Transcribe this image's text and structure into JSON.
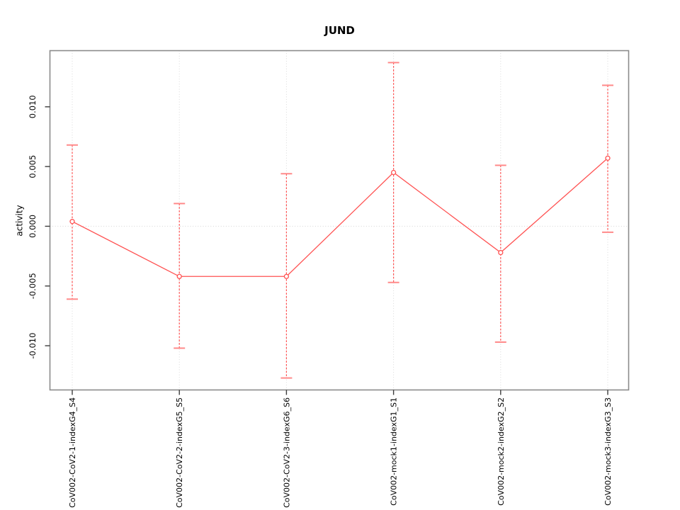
{
  "chart_data": {
    "type": "line",
    "title": "JUND",
    "xlabel": "",
    "ylabel": "activity",
    "legend": "none",
    "grid": "vertical dotted gridline at each category; dotted horizontal line at y=0",
    "categories": [
      "CoV002-CoV2-1-indexG4_S4",
      "CoV002-CoV2-2-indexG5_S5",
      "CoV002-CoV2-3-indexG6_S6",
      "CoV002-mock1-indexG1_S1",
      "CoV002-mock2-indexG2_S2",
      "CoV002-mock3-indexG3_S3"
    ],
    "series": [
      {
        "name": "activity",
        "marker": "open-circle",
        "values": [
          0.0004,
          -0.0042,
          -0.0042,
          0.0045,
          -0.0022,
          0.0057
        ],
        "error_upper": [
          0.0068,
          0.0019,
          0.0044,
          0.0137,
          0.0051,
          0.0118
        ],
        "error_lower": [
          -0.0061,
          -0.0102,
          -0.0127,
          -0.0047,
          -0.0097,
          -0.0005
        ]
      }
    ],
    "ylim": [
      -0.0137,
      0.0147
    ],
    "yticks": [
      -0.01,
      -0.005,
      0.0,
      0.005,
      0.01
    ],
    "ytick_labels": [
      "-0.010",
      "-0.005",
      "0.000",
      "0.005",
      "0.010"
    ],
    "colors": {
      "series": "#ff5252",
      "error_cap": "#ff8a8a",
      "marker_fill": "#ffffff",
      "gridline": "#d9d9d9",
      "zero_line": "#d4d4d4",
      "plot_border": "#8a8a8a",
      "axis_tick": "#3d3d3d",
      "text": "#000000",
      "background": "#ffffff"
    }
  }
}
